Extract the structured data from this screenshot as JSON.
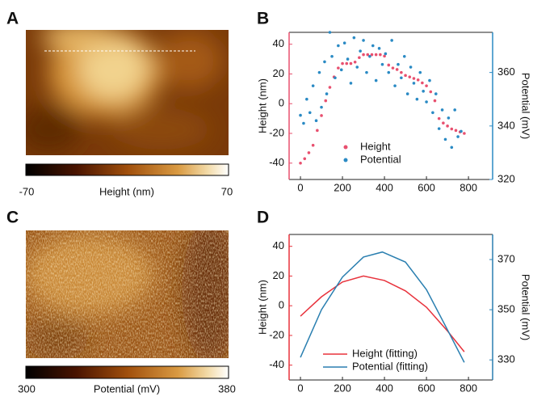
{
  "panels": [
    "A",
    "B",
    "C",
    "D"
  ],
  "images": [
    {
      "colorbar": {
        "min": -70,
        "title": "Height (nm)",
        "max": 70
      }
    },
    {
      "colorbar": {
        "min": 300,
        "title": "Potential (mV)",
        "max": 380
      }
    }
  ],
  "chart_data": [
    {
      "type": "scatter",
      "ylabel": "Height (nm)",
      "y2label": "Potential (mV)",
      "xlim": [
        -54,
        915
      ],
      "xticks": [
        0,
        200,
        400,
        600,
        800
      ],
      "ylim": [
        -51,
        48
      ],
      "yticks": [
        -40,
        -20,
        0,
        20,
        40
      ],
      "y2lim": [
        320,
        375
      ],
      "y2ticks": [
        320,
        340,
        360
      ],
      "legend": "lower left",
      "series": [
        {
          "name": "Height",
          "color": "#e8506f",
          "x": [
            0,
            20,
            40,
            60,
            80,
            100,
            120,
            140,
            160,
            180,
            200,
            220,
            240,
            260,
            280,
            300,
            320,
            340,
            360,
            380,
            400,
            420,
            440,
            460,
            480,
            500,
            520,
            540,
            560,
            580,
            600,
            620,
            640,
            660,
            680,
            700,
            720,
            740,
            760,
            780
          ],
          "values": [
            -40,
            -37,
            -33,
            -28,
            -18,
            -8,
            2,
            11,
            18,
            24,
            27,
            27,
            27,
            28,
            31,
            33,
            33,
            33,
            33,
            33,
            32,
            26,
            24,
            23,
            21,
            19,
            18,
            17,
            16,
            14,
            12,
            8,
            2,
            -10,
            -13,
            -15,
            -17,
            -18,
            -19,
            -20
          ]
        },
        {
          "name": "Potential",
          "color": "#2a8ac4",
          "axis": "y2",
          "x": [
            0,
            15,
            30,
            45,
            60,
            75,
            90,
            100,
            115,
            125,
            140,
            150,
            165,
            180,
            195,
            210,
            225,
            240,
            255,
            270,
            285,
            300,
            315,
            330,
            345,
            360,
            375,
            390,
            405,
            420,
            435,
            450,
            465,
            480,
            495,
            510,
            525,
            540,
            555,
            570,
            585,
            600,
            615,
            630,
            645,
            660,
            675,
            690,
            705,
            720,
            735,
            750,
            765
          ],
          "values": [
            344,
            341,
            350,
            345,
            355,
            342,
            360,
            347,
            364,
            352,
            375,
            366,
            358,
            370,
            361,
            371,
            365,
            356,
            373,
            362,
            368,
            372,
            360,
            366,
            370,
            357,
            369,
            363,
            367,
            360,
            372,
            355,
            363,
            358,
            366,
            352,
            362,
            356,
            350,
            360,
            353,
            349,
            357,
            345,
            352,
            339,
            346,
            335,
            343,
            332,
            346,
            336,
            338
          ]
        }
      ]
    },
    {
      "type": "line",
      "ylabel": "Height (nm)",
      "y2label": "Potential (mV)",
      "xlim": [
        -54,
        915
      ],
      "xticks": [
        0,
        200,
        400,
        600,
        800
      ],
      "ylim": [
        -50,
        48
      ],
      "yticks": [
        -40,
        -20,
        0,
        20,
        40
      ],
      "y2lim": [
        322,
        380
      ],
      "y2ticks": [
        330,
        350,
        370
      ],
      "legend": "lower center",
      "series": [
        {
          "name": "Height (fitting)",
          "color": "#e8323c",
          "x": [
            0,
            100,
            200,
            300,
            400,
            500,
            600,
            700,
            780
          ],
          "values": [
            -7,
            6,
            16,
            20,
            17,
            10,
            -1,
            -17,
            -31
          ]
        },
        {
          "name": "Potential (fitting)",
          "color": "#2a7fb0",
          "axis": "y2",
          "x": [
            0,
            100,
            200,
            300,
            390,
            500,
            600,
            700,
            780
          ],
          "values": [
            331,
            350,
            363,
            371,
            373,
            369,
            358,
            342,
            329
          ]
        }
      ]
    }
  ]
}
